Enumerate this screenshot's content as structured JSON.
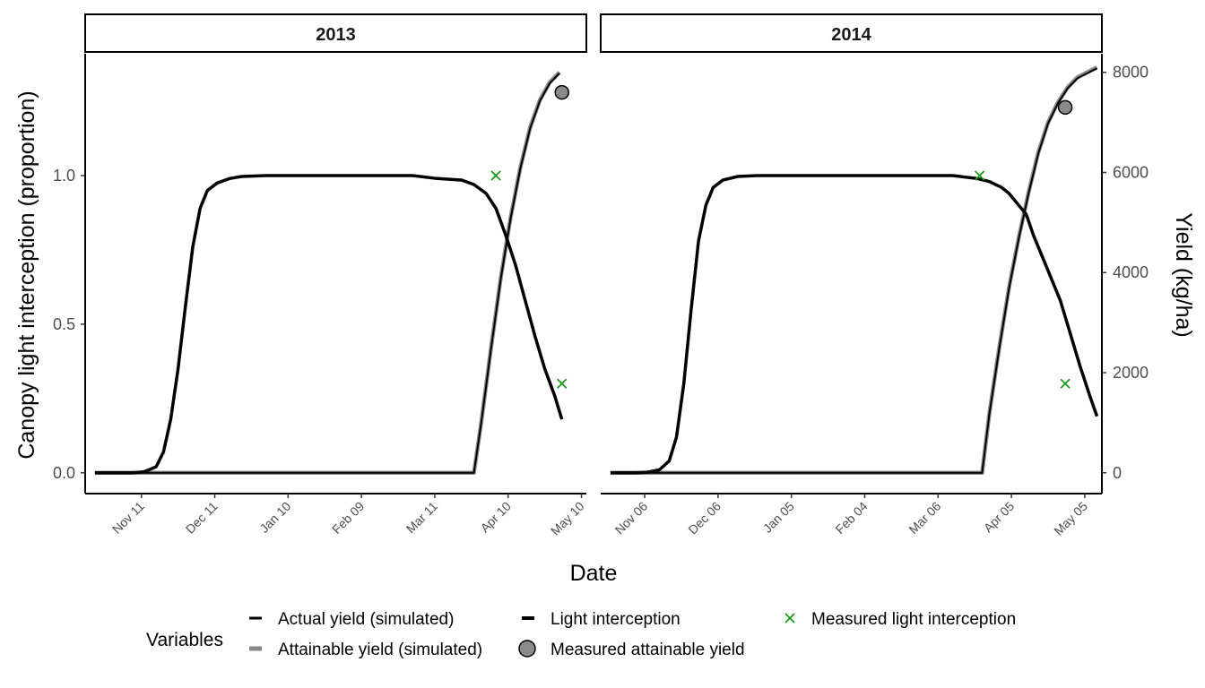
{
  "chart_data": {
    "type": "line",
    "xlabel": "Date",
    "ylabel_left": "Canopy light interception (proportion)",
    "ylabel_right": "Yield (kg/ha)",
    "ylim_left": [
      -0.07,
      1.41
    ],
    "ylim_right": [
      -416,
      8371
    ],
    "yticks_left": [
      "0.0",
      "0.5",
      "1.0"
    ],
    "yticks_right": [
      "0",
      "2000",
      "4000",
      "6000",
      "8000"
    ],
    "grid": false,
    "legend_position": "bottom",
    "legend_title": "Variables",
    "legend_items": [
      {
        "label": "Actual yield (simulated)",
        "symbol": "line",
        "color": "#000000"
      },
      {
        "label": "Attainable yield (simulated)",
        "symbol": "line",
        "color": "#888888"
      },
      {
        "label": "Light interception",
        "symbol": "line",
        "color": "#000000"
      },
      {
        "label": "Measured attainable yield",
        "symbol": "circle",
        "color": "#8a8a8a"
      },
      {
        "label": "Measured light interception",
        "symbol": "cross",
        "color": "#1a9a1a"
      }
    ],
    "panels": [
      {
        "title": "2013",
        "start_date": "2012-10-23",
        "xlim_days": [
          -4,
          201
        ],
        "xticks": [
          "Nov 11",
          "Dec 11",
          "Jan 10",
          "Feb 09",
          "Mar 11",
          "Apr 10",
          "May 10"
        ],
        "light_interception": [
          [
            0,
            0
          ],
          [
            10,
            0
          ],
          [
            15,
            0
          ],
          [
            20,
            0.003
          ],
          [
            25,
            0.02
          ],
          [
            28,
            0.07
          ],
          [
            31,
            0.18
          ],
          [
            34,
            0.35
          ],
          [
            37,
            0.56
          ],
          [
            40,
            0.76
          ],
          [
            43,
            0.89
          ],
          [
            46,
            0.95
          ],
          [
            50,
            0.975
          ],
          [
            55,
            0.99
          ],
          [
            60,
            0.997
          ],
          [
            70,
            1
          ],
          [
            100,
            1
          ],
          [
            130,
            1
          ],
          [
            140,
            0.99
          ],
          [
            150,
            0.985
          ],
          [
            155,
            0.97
          ],
          [
            160,
            0.94
          ],
          [
            164,
            0.89
          ],
          [
            168,
            0.8
          ],
          [
            172,
            0.7
          ],
          [
            176,
            0.58
          ],
          [
            180,
            0.46
          ],
          [
            184,
            0.35
          ],
          [
            188,
            0.26
          ],
          [
            191,
            0.18
          ]
        ],
        "attainable_yield": [
          [
            0,
            0
          ],
          [
            155,
            0
          ],
          [
            158,
            1000
          ],
          [
            162,
            2500
          ],
          [
            166,
            3900
          ],
          [
            170,
            5100
          ],
          [
            174,
            6100
          ],
          [
            178,
            6900
          ],
          [
            182,
            7450
          ],
          [
            186,
            7800
          ],
          [
            190,
            8000
          ]
        ],
        "actual_yield": [
          [
            0,
            0
          ],
          [
            155,
            0
          ],
          [
            158,
            990
          ],
          [
            162,
            2480
          ],
          [
            166,
            3880
          ],
          [
            170,
            5080
          ],
          [
            174,
            6080
          ],
          [
            178,
            6880
          ],
          [
            182,
            7430
          ],
          [
            186,
            7780
          ],
          [
            190,
            7980
          ]
        ],
        "measured_light": [
          {
            "x": 164,
            "y": 1.0
          },
          {
            "x": 191,
            "y": 0.3
          }
        ],
        "measured_yield": [
          {
            "x": 191,
            "y": 7600
          }
        ]
      },
      {
        "title": "2014",
        "start_date": "2013-10-23",
        "xlim_days": [
          -4,
          201
        ],
        "xticks": [
          "Nov 06",
          "Dec 06",
          "Jan 05",
          "Feb 04",
          "Mar 06",
          "Apr 05",
          "May 05"
        ],
        "light_interception": [
          [
            0,
            0
          ],
          [
            10,
            0
          ],
          [
            15,
            0.002
          ],
          [
            20,
            0.01
          ],
          [
            24,
            0.04
          ],
          [
            27,
            0.12
          ],
          [
            30,
            0.3
          ],
          [
            33,
            0.55
          ],
          [
            36,
            0.78
          ],
          [
            39,
            0.9
          ],
          [
            42,
            0.96
          ],
          [
            46,
            0.985
          ],
          [
            52,
            0.997
          ],
          [
            60,
            1
          ],
          [
            100,
            1
          ],
          [
            140,
            1
          ],
          [
            150,
            0.99
          ],
          [
            155,
            0.98
          ],
          [
            160,
            0.96
          ],
          [
            163,
            0.94
          ],
          [
            167,
            0.9
          ],
          [
            170,
            0.87
          ],
          [
            173,
            0.8
          ],
          [
            176,
            0.74
          ],
          [
            180,
            0.66
          ],
          [
            184,
            0.58
          ],
          [
            188,
            0.47
          ],
          [
            192,
            0.36
          ],
          [
            196,
            0.26
          ],
          [
            199,
            0.19
          ]
        ],
        "attainable_yield": [
          [
            0,
            0
          ],
          [
            152,
            0
          ],
          [
            155,
            1200
          ],
          [
            159,
            2500
          ],
          [
            163,
            3700
          ],
          [
            167,
            4700
          ],
          [
            171,
            5600
          ],
          [
            175,
            6400
          ],
          [
            179,
            7000
          ],
          [
            183,
            7400
          ],
          [
            187,
            7700
          ],
          [
            191,
            7900
          ],
          [
            199,
            8100
          ]
        ],
        "actual_yield": [
          [
            0,
            0
          ],
          [
            152,
            0
          ],
          [
            155,
            1190
          ],
          [
            159,
            2480
          ],
          [
            163,
            3680
          ],
          [
            167,
            4680
          ],
          [
            171,
            5580
          ],
          [
            175,
            6380
          ],
          [
            179,
            6980
          ],
          [
            183,
            7380
          ],
          [
            187,
            7680
          ],
          [
            191,
            7880
          ],
          [
            199,
            8080
          ]
        ],
        "measured_light": [
          {
            "x": 151,
            "y": 1.0
          },
          {
            "x": 186,
            "y": 0.3
          }
        ],
        "measured_yield": [
          {
            "x": 186,
            "y": 7300
          }
        ]
      }
    ]
  }
}
